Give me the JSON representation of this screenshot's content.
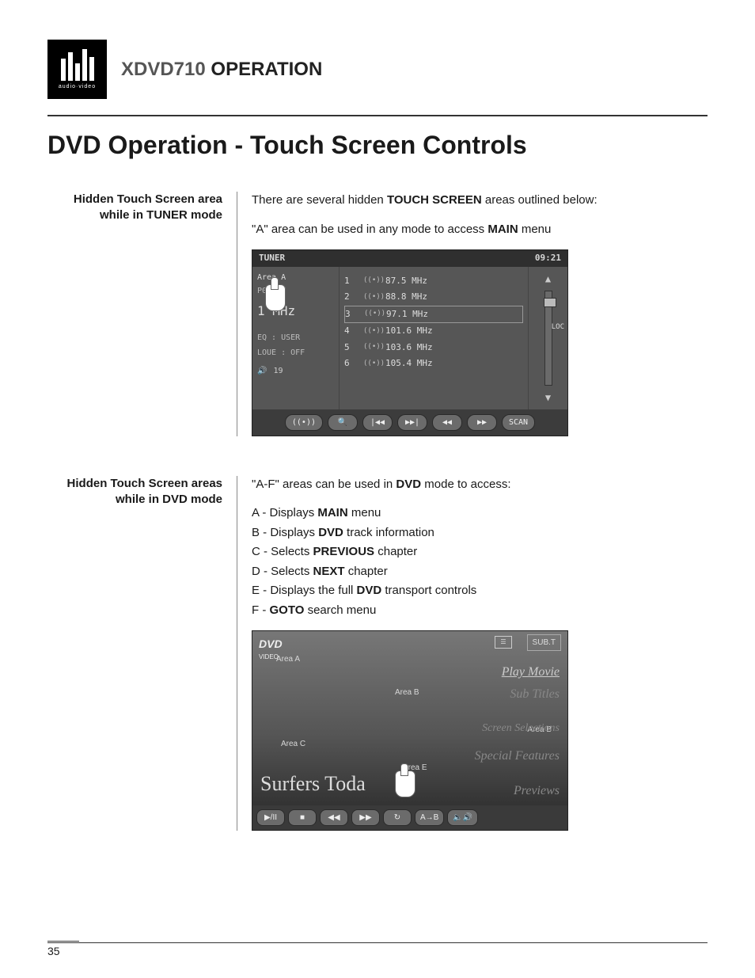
{
  "logo": {
    "subtext": "audio·video"
  },
  "header": {
    "model": "XDVD710",
    "word": "OPERATION"
  },
  "title": "DVD Operation - Touch Screen Controls",
  "section1": {
    "left_line1": "Hidden Touch Screen area",
    "left_line2": "while in TUNER mode",
    "intro_pre": "There are several hidden ",
    "intro_bold": "TOUCH SCREEN",
    "intro_post": " areas outlined below:",
    "line2_pre": "\"A\" area can be used in any mode to access ",
    "line2_bold": "MAIN",
    "line2_post": " menu"
  },
  "tuner": {
    "top_left": "TUNER",
    "clock": "09:21",
    "area_label": "Area A",
    "preset": "P03  ST",
    "mhz_val": "1",
    "mhz_unit": "MHz",
    "eq": "EQ    : USER",
    "loud": "LOUE : OFF",
    "vol_icon": "🔊",
    "vol_val": "19",
    "loc": "LOC",
    "presets": [
      {
        "n": "1",
        "f": "87.5 MHz"
      },
      {
        "n": "2",
        "f": "88.8 MHz"
      },
      {
        "n": "3",
        "f": "97.1 MHz"
      },
      {
        "n": "4",
        "f": "101.6 MHz"
      },
      {
        "n": "5",
        "f": "103.6 MHz"
      },
      {
        "n": "6",
        "f": "105.4 MHz"
      }
    ],
    "arrow_up": "▲",
    "arrow_down": "▼",
    "buttons": [
      "((•))",
      "🔍",
      "|◀◀",
      "▶▶|",
      "◀◀",
      "▶▶",
      "SCAN"
    ]
  },
  "section2": {
    "left_line1": "Hidden Touch Screen areas",
    "left_line2": "while in DVD mode",
    "intro_pre": "\"A-F\" areas can be used in ",
    "intro_bold": "DVD",
    "intro_post": " mode to access:",
    "items": [
      {
        "k": "A",
        "pre": " - Displays ",
        "b": "MAIN",
        "post": " menu"
      },
      {
        "k": "B",
        "pre": " - Displays ",
        "b": "DVD",
        "post": " track information"
      },
      {
        "k": "C",
        "pre": " - Selects ",
        "b": "PREVIOUS",
        "post": " chapter"
      },
      {
        "k": "D",
        "pre": " - Selects ",
        "b": "NEXT",
        "post": " chapter"
      },
      {
        "k": "E",
        "pre": " - Displays the full ",
        "b": "DVD",
        "post": " transport controls"
      },
      {
        "k": "F",
        "pre": " - ",
        "b": "GOTO",
        "post": " search menu"
      }
    ]
  },
  "dvd": {
    "logo": "DVD",
    "logo_sub": "VIDEO",
    "cc": "☰",
    "subt": "SUB.T",
    "areaA": "Area A",
    "areaB": "Area B",
    "areaB2": "Area B",
    "areaC": "Area C",
    "areaE": "Area E",
    "menu": {
      "play": "Play Movie",
      "subs": "Sub Titles",
      "scene": "Screen Selections",
      "special": "Special Features",
      "previews": "Previews"
    },
    "title_overlay": "Surfers Toda",
    "buttons": [
      "▶/II",
      "■",
      "◀◀",
      "▶▶",
      "↻",
      "A→B",
      "🔈🔊"
    ]
  },
  "page_num": "35"
}
